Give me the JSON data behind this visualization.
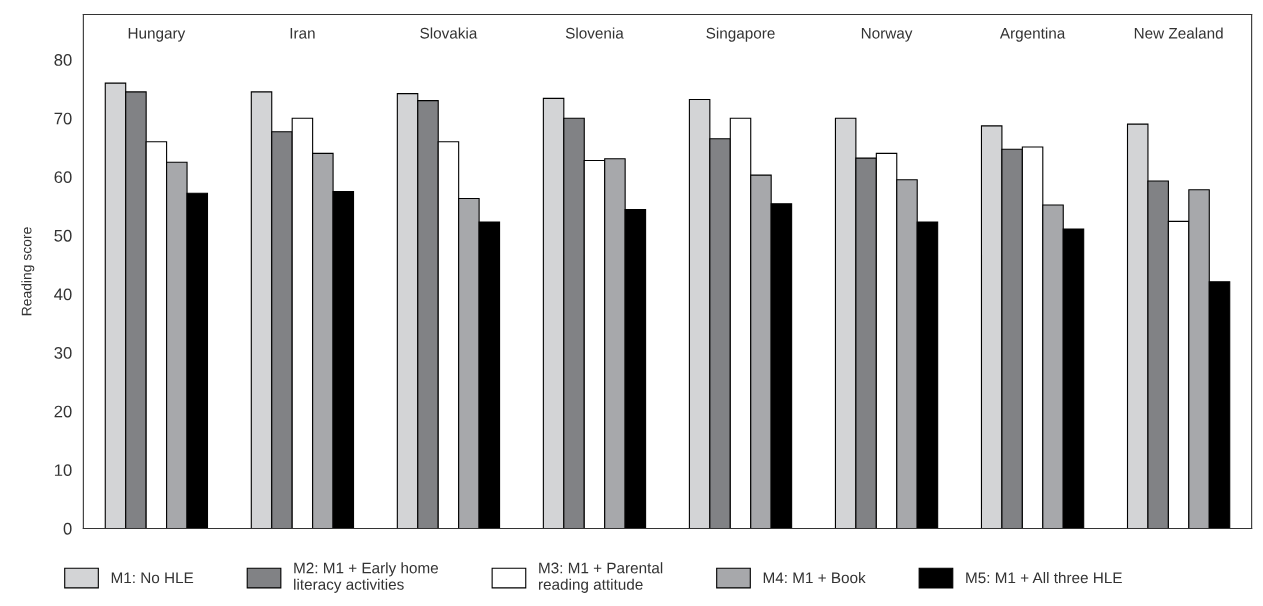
{
  "chart_data": {
    "type": "bar",
    "ylabel": "Reading score",
    "categories": [
      "Hungary",
      "Iran",
      "Slovakia",
      "Slovenia",
      "Singapore",
      "Norway",
      "Argentina",
      "New Zealand"
    ],
    "series": [
      {
        "name": "M1: No HLE",
        "color": "#d3d4d6",
        "values": [
          76,
          74.5,
          74.2,
          73.4,
          73.2,
          70,
          68.7,
          69
        ]
      },
      {
        "name": "M2: M1 + Early home\nliteracy activities",
        "color": "#818285",
        "values": [
          74.5,
          67.7,
          73,
          70,
          66.5,
          63.2,
          64.7,
          59.3
        ]
      },
      {
        "name": "M3: M1 + Parental\nreading attitude",
        "color": "#ffffff",
        "values": [
          66,
          70,
          66,
          62.8,
          70,
          64,
          65.1,
          52.4
        ]
      },
      {
        "name": "M4: M1 + Book",
        "color": "#a7a8ab",
        "values": [
          62.5,
          64,
          56.3,
          63.1,
          60.3,
          59.5,
          55.2,
          57.8
        ]
      },
      {
        "name": "M5: M1 + All three HLE",
        "color": "#000000",
        "values": [
          57.2,
          57.5,
          52.3,
          54.4,
          55.4,
          52.3,
          51.1,
          42.1
        ]
      }
    ],
    "ylim": [
      0,
      87.7
    ],
    "yticks": [
      0,
      10,
      20,
      30,
      40,
      50,
      60,
      70,
      80
    ],
    "grid": false,
    "legend": "bottom"
  }
}
